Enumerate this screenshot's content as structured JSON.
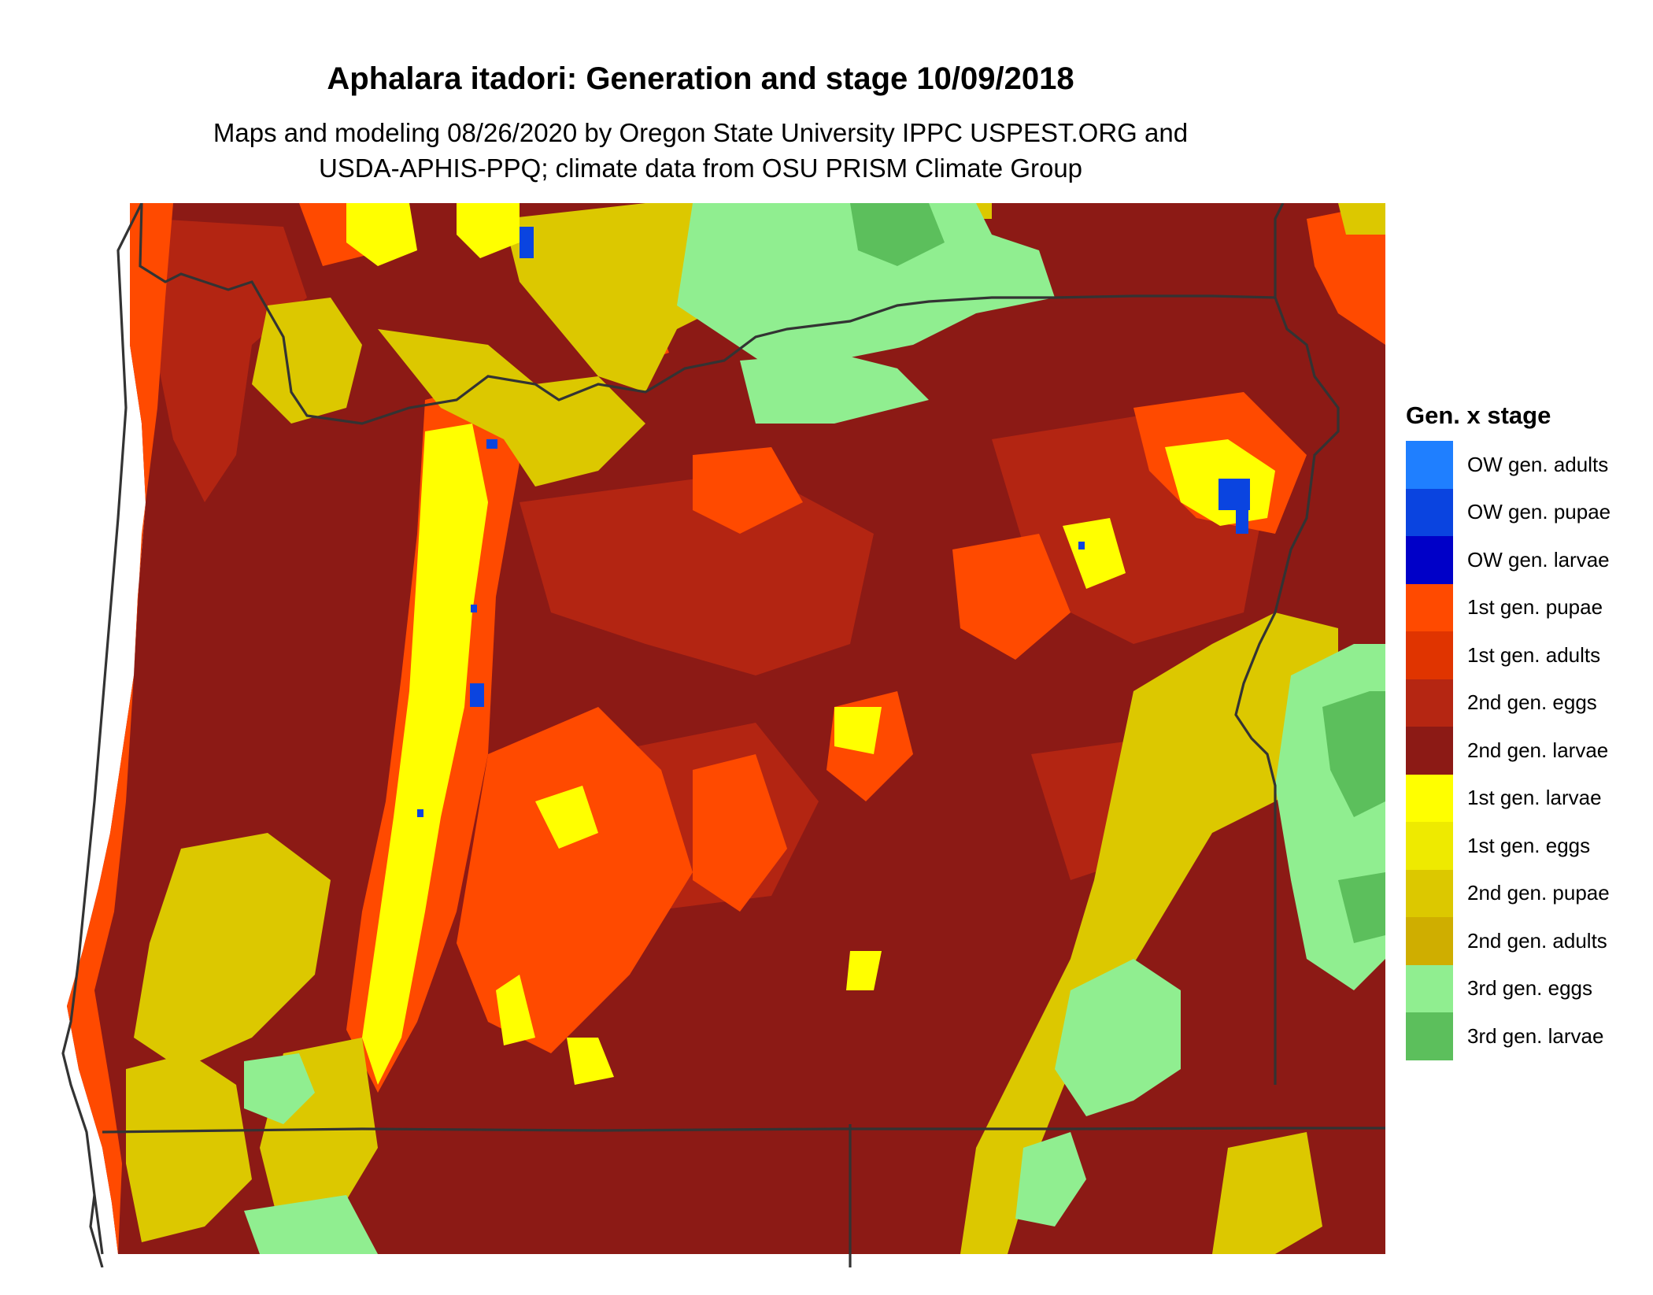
{
  "title": "Aphalara itadori: Generation and stage 10/09/2018",
  "subtitle_line1": "Maps and modeling 08/26/2020 by Oregon State University IPPC USPEST.ORG and",
  "subtitle_line2": "USDA-APHIS-PPQ; climate data from OSU PRISM Climate Group",
  "legend": {
    "title": "Gen. x stage",
    "items": [
      {
        "label": "OW gen. adults",
        "color": "#1f7fff"
      },
      {
        "label": "OW gen. pupae",
        "color": "#0a44e0"
      },
      {
        "label": "OW gen. larvae",
        "color": "#0000c8"
      },
      {
        "label": "1st gen. pupae",
        "color": "#ff4a00"
      },
      {
        "label": "1st gen. adults",
        "color": "#e03400"
      },
      {
        "label": "2nd gen. eggs",
        "color": "#b52612"
      },
      {
        "label": "2nd gen. larvae",
        "color": "#8c1a15"
      },
      {
        "label": "1st gen. larvae",
        "color": "#ffff00"
      },
      {
        "label": "1st gen. eggs",
        "color": "#eeea00"
      },
      {
        "label": "2nd gen. pupae",
        "color": "#dcc800"
      },
      {
        "label": "2nd gen. adults",
        "color": "#cfae00"
      },
      {
        "label": "3rd gen. eggs",
        "color": "#90ee90"
      },
      {
        "label": "3rd gen. larvae",
        "color": "#5cbf5c"
      }
    ]
  }
}
